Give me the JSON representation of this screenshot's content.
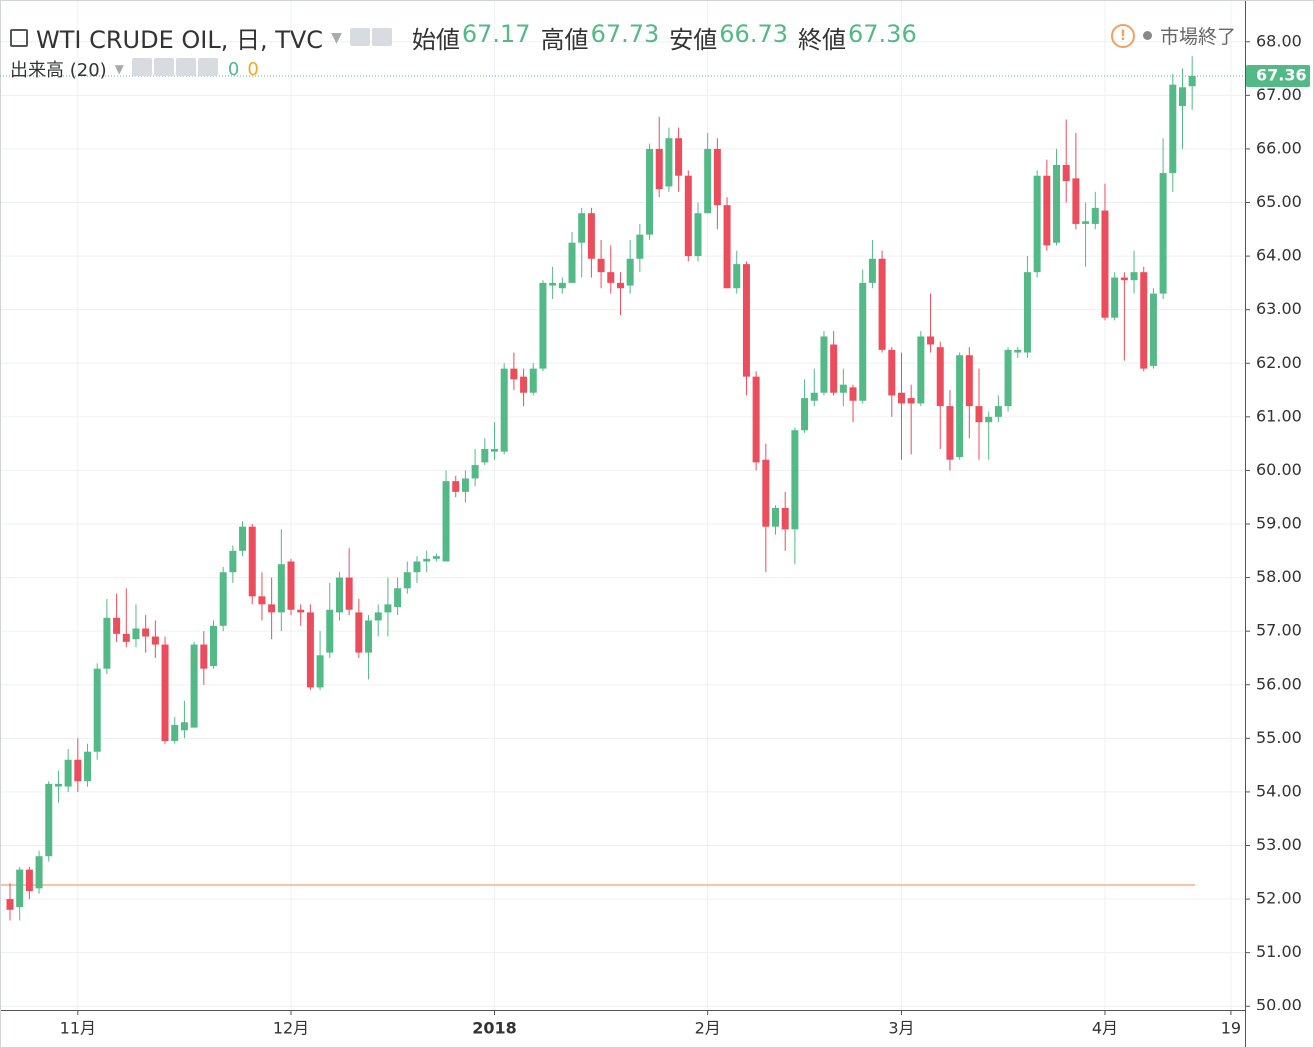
{
  "chart_data": {
    "type": "candlestick",
    "title": "WTI CRUDE OIL, 日, TVC",
    "ohlc_legend": [
      {
        "label": "始値",
        "value": 67.17
      },
      {
        "label": "高値",
        "value": 67.73
      },
      {
        "label": "安値",
        "value": 66.73
      },
      {
        "label": "終値",
        "value": 67.36
      }
    ],
    "volume_legend": {
      "label": "出来高 (20)",
      "values": [
        0,
        0
      ]
    },
    "status": "市場終了",
    "up_color": "#53b987",
    "down_color": "#eb4d5c",
    "grid": true,
    "x": [
      null,
      null,
      null,
      null,
      null,
      null,
      null,
      "11月",
      null,
      null,
      null,
      null,
      null,
      null,
      null,
      null,
      null,
      null,
      null,
      null,
      null,
      null,
      null,
      null,
      null,
      null,
      null,
      null,
      null,
      "12月",
      null,
      null,
      null,
      null,
      null,
      null,
      null,
      null,
      null,
      null,
      null,
      null,
      null,
      null,
      null,
      null,
      null,
      null,
      null,
      null,
      "2018",
      null,
      null,
      null,
      null,
      null,
      null,
      null,
      null,
      null,
      null,
      null,
      null,
      null,
      null,
      null,
      null,
      null,
      null,
      null,
      null,
      null,
      "2月",
      null,
      null,
      null,
      null,
      null,
      null,
      null,
      null,
      null,
      null,
      null,
      null,
      null,
      null,
      null,
      null,
      null,
      null,
      null,
      "3月",
      null,
      null,
      null,
      null,
      null,
      null,
      null,
      null,
      null,
      null,
      null,
      null,
      null,
      null,
      null,
      null,
      null,
      null,
      null,
      null,
      "4月",
      null,
      null,
      null,
      null,
      null,
      null,
      null,
      null,
      null,
      null,
      null,
      null,
      "19"
    ],
    "open": [
      52.0,
      51.85,
      52.55,
      52.2,
      52.8,
      54.1,
      54.1,
      54.6,
      54.2,
      54.75,
      56.3,
      57.25,
      56.95,
      56.85,
      57.05,
      56.9,
      56.75,
      54.95,
      55.15,
      55.2,
      56.75,
      56.35,
      57.1,
      58.1,
      58.5,
      58.95,
      57.65,
      57.5,
      57.35,
      58.3,
      57.4,
      57.35,
      55.95,
      56.6,
      57.35,
      58.0,
      57.35,
      56.6,
      57.2,
      57.35,
      57.45,
      57.8,
      58.1,
      58.3,
      58.35,
      58.3,
      59.8,
      59.6,
      59.85,
      60.15,
      60.35,
      60.35,
      61.9,
      61.75,
      61.45,
      61.9,
      63.45,
      63.4,
      63.5,
      64.25,
      64.8,
      63.95,
      63.7,
      63.5,
      63.45,
      63.95,
      64.4,
      66.0,
      65.3,
      66.2,
      65.5,
      64.0,
      64.8,
      66.0,
      64.95,
      63.4,
      63.85,
      61.75,
      60.2,
      58.95,
      59.3,
      58.9,
      60.75,
      61.3,
      61.45,
      62.35,
      61.45,
      61.55,
      61.3,
      63.5,
      63.95,
      62.25,
      61.45,
      61.35,
      61.25,
      62.5,
      62.3,
      61.2,
      60.25,
      62.15,
      61.2,
      60.9,
      61.0,
      61.2,
      62.2,
      62.2,
      63.7,
      65.5,
      64.25,
      65.7,
      65.45,
      64.6,
      64.6,
      64.85,
      62.85,
      63.6,
      63.55,
      63.7,
      61.95,
      63.3,
      65.55,
      66.8,
      67.17,
      null,
      null,
      null,
      null
    ],
    "high": [
      52.3,
      52.6,
      52.6,
      52.9,
      54.2,
      54.4,
      54.8,
      55.0,
      54.9,
      56.4,
      57.6,
      57.7,
      57.8,
      57.5,
      57.3,
      57.2,
      56.9,
      55.4,
      55.7,
      56.8,
      57.0,
      57.2,
      58.2,
      58.6,
      59.05,
      59.0,
      58.1,
      58.0,
      58.9,
      58.35,
      57.5,
      57.5,
      57.0,
      57.9,
      58.1,
      58.55,
      57.6,
      57.3,
      57.5,
      58.0,
      58.0,
      58.3,
      58.4,
      58.5,
      58.45,
      60.0,
      59.9,
      60.0,
      60.4,
      60.6,
      60.9,
      62.0,
      62.2,
      61.9,
      62.0,
      63.55,
      63.8,
      63.6,
      64.45,
      64.9,
      64.9,
      64.3,
      64.2,
      63.7,
      64.3,
      64.6,
      66.1,
      66.6,
      66.4,
      66.4,
      65.6,
      65.0,
      66.3,
      66.2,
      65.1,
      64.1,
      63.9,
      61.85,
      60.5,
      59.35,
      59.6,
      60.8,
      61.7,
      61.9,
      62.6,
      62.6,
      61.9,
      61.6,
      63.75,
      64.3,
      64.1,
      62.3,
      62.2,
      61.6,
      62.6,
      63.3,
      62.4,
      61.5,
      62.2,
      62.3,
      61.9,
      61.1,
      61.4,
      62.3,
      62.3,
      64.0,
      65.6,
      65.8,
      66.0,
      66.55,
      66.3,
      65.0,
      65.2,
      65.35,
      63.7,
      63.7,
      64.1,
      63.8,
      63.4,
      66.2,
      67.4,
      67.5,
      67.73,
      null,
      null,
      null,
      null
    ],
    "low": [
      51.6,
      51.6,
      52.0,
      52.1,
      52.7,
      53.8,
      54.0,
      54.0,
      54.1,
      54.6,
      56.2,
      56.8,
      56.7,
      56.7,
      56.6,
      56.5,
      54.9,
      54.9,
      55.0,
      55.2,
      56.0,
      56.3,
      57.0,
      57.9,
      58.4,
      57.5,
      57.2,
      56.85,
      57.0,
      57.3,
      57.1,
      55.9,
      55.9,
      56.5,
      57.2,
      57.3,
      56.5,
      56.1,
      56.9,
      56.9,
      57.3,
      57.7,
      57.9,
      58.1,
      58.3,
      58.3,
      59.5,
      59.4,
      59.7,
      60.1,
      60.2,
      60.3,
      61.5,
      61.2,
      61.4,
      61.85,
      63.2,
      63.3,
      63.5,
      63.6,
      63.6,
      63.4,
      63.3,
      62.9,
      63.3,
      63.7,
      64.3,
      65.1,
      65.2,
      65.2,
      63.9,
      63.9,
      64.8,
      64.5,
      63.4,
      63.3,
      61.4,
      60.0,
      58.1,
      58.8,
      58.5,
      58.25,
      60.7,
      61.2,
      61.4,
      61.4,
      61.2,
      60.9,
      61.25,
      63.4,
      62.2,
      61.0,
      60.2,
      60.3,
      61.2,
      62.2,
      60.4,
      60.0,
      60.2,
      60.6,
      60.2,
      60.2,
      60.9,
      61.1,
      62.1,
      62.1,
      63.6,
      64.1,
      64.2,
      65.0,
      64.5,
      63.8,
      64.5,
      62.8,
      62.8,
      62.05,
      63.3,
      61.85,
      61.9,
      63.2,
      65.2,
      66.0,
      66.73,
      null,
      null,
      null,
      null
    ],
    "close": [
      51.8,
      52.55,
      52.15,
      52.8,
      54.15,
      54.15,
      54.6,
      54.2,
      54.75,
      56.3,
      57.25,
      56.95,
      56.8,
      57.05,
      56.9,
      56.75,
      54.95,
      55.25,
      55.3,
      56.75,
      56.3,
      57.1,
      58.1,
      58.5,
      58.95,
      57.65,
      57.5,
      57.35,
      58.25,
      57.4,
      57.35,
      55.95,
      56.55,
      57.4,
      58.0,
      57.4,
      56.6,
      57.2,
      57.35,
      57.5,
      57.8,
      58.1,
      58.3,
      58.35,
      58.4,
      59.8,
      59.6,
      59.85,
      60.1,
      60.4,
      60.4,
      61.9,
      61.7,
      61.45,
      61.9,
      63.5,
      63.5,
      63.5,
      64.25,
      64.8,
      63.95,
      63.7,
      63.5,
      63.4,
      63.95,
      64.4,
      66.0,
      65.25,
      66.2,
      65.5,
      64.0,
      64.8,
      66.0,
      64.95,
      63.4,
      63.85,
      61.75,
      60.15,
      58.95,
      59.3,
      58.9,
      60.75,
      61.35,
      61.45,
      62.5,
      61.45,
      61.6,
      61.3,
      63.5,
      63.95,
      62.25,
      61.4,
      61.25,
      61.25,
      62.5,
      62.35,
      61.2,
      60.2,
      62.15,
      61.2,
      60.9,
      61.0,
      61.2,
      62.25,
      62.25,
      63.7,
      65.5,
      64.2,
      65.7,
      65.4,
      64.6,
      64.65,
      64.9,
      62.85,
      63.6,
      63.55,
      63.7,
      61.9,
      63.3,
      65.55,
      67.2,
      67.15,
      67.36,
      null,
      null,
      null,
      null
    ],
    "ylim": [
      49.93,
      68.63
    ],
    "yticks": [
      {
        "value": 50,
        "label": "50.00"
      },
      {
        "value": 51,
        "label": "51.00"
      },
      {
        "value": 52,
        "label": "52.00"
      },
      {
        "value": 53,
        "label": "53.00"
      },
      {
        "value": 54,
        "label": "54.00"
      },
      {
        "value": 55,
        "label": "55.00"
      },
      {
        "value": 56,
        "label": "56.00"
      },
      {
        "value": 57,
        "label": "57.00"
      },
      {
        "value": 58,
        "label": "58.00"
      },
      {
        "value": 59,
        "label": "59.00"
      },
      {
        "value": 60,
        "label": "60.00"
      },
      {
        "value": 61,
        "label": "61.00"
      },
      {
        "value": 62,
        "label": "62.00"
      },
      {
        "value": 63,
        "label": "63.00"
      },
      {
        "value": 64,
        "label": "64.00"
      },
      {
        "value": 65,
        "label": "65.00"
      },
      {
        "value": 66,
        "label": "66.00"
      },
      {
        "value": 67,
        "label": "67.00"
      },
      {
        "value": 68,
        "label": "68.00"
      }
    ]
  }
}
